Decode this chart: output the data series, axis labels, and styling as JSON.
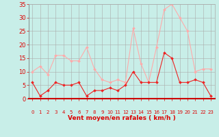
{
  "hours": [
    0,
    1,
    2,
    3,
    4,
    5,
    6,
    7,
    8,
    9,
    10,
    11,
    12,
    13,
    14,
    15,
    16,
    17,
    18,
    19,
    20,
    21,
    22,
    23
  ],
  "wind_avg": [
    6,
    1,
    3,
    6,
    5,
    5,
    6,
    1,
    3,
    3,
    4,
    3,
    5,
    10,
    6,
    6,
    6,
    17,
    15,
    6,
    6,
    7,
    6,
    1
  ],
  "wind_gust": [
    10,
    12,
    9,
    16,
    16,
    14,
    14,
    19,
    11,
    7,
    6,
    7,
    6,
    26,
    13,
    6,
    19,
    33,
    35,
    30,
    25,
    10,
    11,
    11
  ],
  "bg_color": "#c8eee8",
  "grid_color": "#aaaaaa",
  "line_avg_color": "#ee2222",
  "line_gust_color": "#ffaaaa",
  "xlabel": "Vent moyen/en rafales ( km/h )",
  "xlabel_color": "#dd0000",
  "tick_color": "#dd0000",
  "ylim": [
    0,
    35
  ],
  "yticks": [
    0,
    5,
    10,
    15,
    20,
    25,
    30,
    35
  ]
}
